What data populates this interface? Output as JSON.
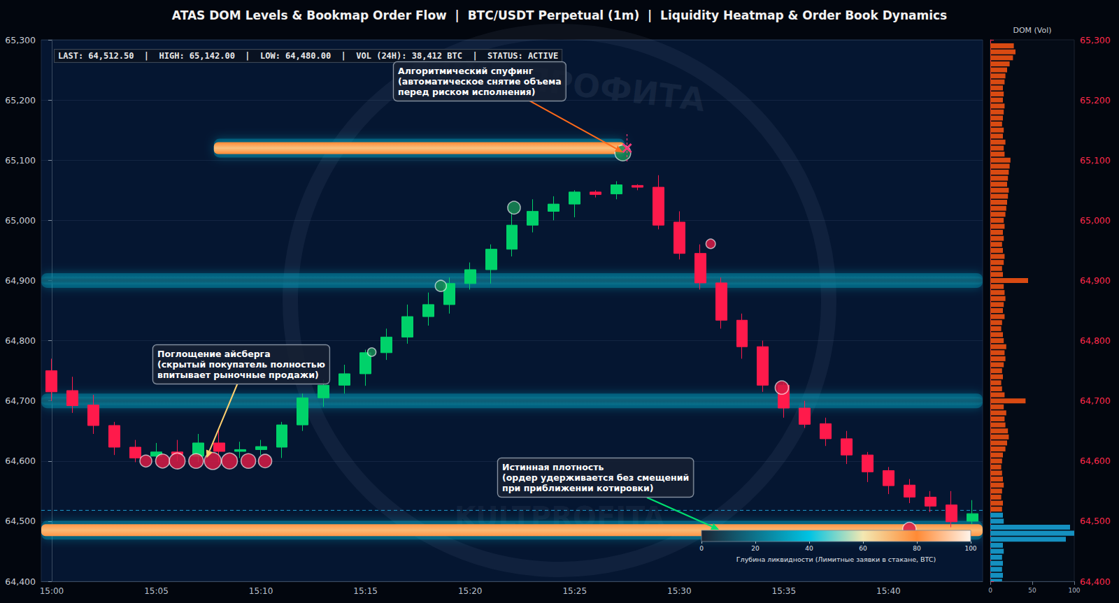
{
  "chart_data": {
    "type": "candlestick",
    "title": "ATAS DOM Levels & Bookmap Order Flow  |  BTC/USDT Perpetual (1m)  |  Liquidity Heatmap & Order Book Dynamics",
    "info": "LAST: 64,512.50  |  HIGH: 65,142.00  |  LOW: 64,480.00  |  VOL (24H): 38,412 BTC  |  STATUS: ACTIVE",
    "watermark": [
      "КЛУБ ПРОФИТА",
      "KULTPROFITA"
    ],
    "categories": [
      "15:00",
      null,
      null,
      null,
      null,
      "15:05",
      null,
      null,
      null,
      null,
      "15:10",
      null,
      null,
      null,
      null,
      "15:15",
      null,
      null,
      null,
      null,
      "15:20",
      null,
      null,
      null,
      null,
      "15:25",
      null,
      null,
      null,
      null,
      "15:30",
      null,
      null,
      null,
      null,
      "15:35",
      null,
      null,
      null,
      null,
      "15:40",
      null,
      null,
      null,
      null
    ],
    "xlim": [
      -0.5,
      44.5
    ],
    "ylim": [
      64400,
      65300
    ],
    "yticks": [
      64400,
      64500,
      64600,
      64700,
      64800,
      64900,
      65000,
      65100,
      65200,
      65300
    ],
    "grid": true,
    "open": [
      64750,
      64717,
      64693,
      64659,
      64623,
      64608,
      64615,
      64608,
      64630,
      64616,
      64619,
      64623,
      64660,
      64705,
      64726,
      64745,
      64780,
      64806,
      64840,
      64860,
      64895,
      64918,
      64952,
      64992,
      65015,
      65027,
      65047,
      65044,
      65058,
      65055,
      64997,
      64945,
      64896,
      64834,
      64790,
      64726,
      64688,
      64662,
      64637,
      64610,
      64584,
      64560,
      64540,
      64527,
      64500
    ],
    "close": [
      64715,
      64692,
      64659,
      64623,
      64605,
      64615,
      64611,
      64630,
      64616,
      64619,
      64624,
      64660,
      64705,
      64726,
      64745,
      64780,
      64806,
      64840,
      64860,
      64895,
      64918,
      64952,
      64992,
      65015,
      65027,
      65047,
      65043,
      65059,
      65055,
      64992,
      64945,
      64896,
      64834,
      64790,
      64726,
      64688,
      64661,
      64637,
      64610,
      64582,
      64559,
      64540,
      64525,
      64499,
      64512.5
    ],
    "high": [
      64770,
      64740,
      64710,
      64665,
      64635,
      64630,
      64635,
      64645,
      64652,
      64632,
      64635,
      64665,
      64712,
      64735,
      64760,
      64785,
      64820,
      64860,
      64880,
      64905,
      64930,
      64960,
      65015,
      65035,
      65040,
      65050,
      65050,
      65065,
      65060,
      65075,
      65015,
      64960,
      64905,
      64845,
      64800,
      64730,
      64700,
      64672,
      64650,
      64615,
      64590,
      64570,
      64550,
      64550,
      64535
    ],
    "low": [
      64700,
      64680,
      64645,
      64610,
      64598,
      64598,
      64600,
      64598,
      64598,
      64605,
      64610,
      64605,
      64650,
      64690,
      64712,
      64725,
      64768,
      64795,
      64825,
      64845,
      64885,
      64895,
      64940,
      64980,
      65000,
      65005,
      65038,
      65035,
      65050,
      64985,
      64935,
      64885,
      64820,
      64770,
      64715,
      64672,
      64655,
      64625,
      64595,
      64565,
      64545,
      64530,
      64515,
      64490,
      64495
    ],
    "last_price_line": 64518,
    "liquidity_levels": [
      {
        "price": 64900,
        "start": -0.5,
        "end": 44.5,
        "depth": 30
      },
      {
        "price": 64700,
        "start": -0.5,
        "end": 44.5,
        "depth": 30
      },
      {
        "price": 65120,
        "start": 7.75,
        "end": 27.4,
        "depth": 88
      },
      {
        "price": 64485,
        "start": -0.5,
        "end": 44.5,
        "depth": 90
      }
    ],
    "trade_bubbles": [
      {
        "color": "#d81b45",
        "points": [
          {
            "t": 4.5,
            "price": 64600,
            "size": 40
          },
          {
            "t": 5.3,
            "price": 64600,
            "size": 55
          },
          {
            "t": 6.0,
            "price": 64600,
            "size": 70
          },
          {
            "t": 6.9,
            "price": 64600,
            "size": 60
          },
          {
            "t": 7.7,
            "price": 64600,
            "size": 80
          },
          {
            "t": 8.5,
            "price": 64600,
            "size": 70
          },
          {
            "t": 9.4,
            "price": 64600,
            "size": 60
          },
          {
            "t": 10.2,
            "price": 64600,
            "size": 50
          },
          {
            "t": 31.5,
            "price": 64961,
            "size": 25
          },
          {
            "t": 34.9,
            "price": 64722,
            "size": 50
          },
          {
            "t": 41.0,
            "price": 64487,
            "size": 50
          }
        ]
      },
      {
        "color": "#178a55",
        "points": [
          {
            "t": 15.3,
            "price": 64781,
            "size": 20
          },
          {
            "t": 18.6,
            "price": 64891,
            "size": 35
          },
          {
            "t": 22.1,
            "price": 65021,
            "size": 45
          },
          {
            "t": 27.3,
            "price": 65112,
            "size": 70
          }
        ]
      }
    ],
    "spoof_cancel": {
      "t": 27.5,
      "price": 65120
    },
    "annotations": [
      {
        "text": "Алгоритмический спуфинг\n(автоматическое снятие объема\nперед риском исполнения)",
        "t": 27.3,
        "price": 65113,
        "color": "#ff6a1a"
      },
      {
        "text": "Поглощение айсберга\n(скрытый покупатель полностью\nвпитывает рыночные продажи)",
        "t": 7.4,
        "price": 64605,
        "color": "#ffd070"
      },
      {
        "text": "Истинная плотность\n(ордер удерживается без смещений\nпри приближении котировки)",
        "t": 31.9,
        "price": 64486,
        "color": "#00e070"
      }
    ],
    "colorbar": {
      "label": "Глубина ликвидности (Лимитные заявки в стакане, BTC)",
      "range": [
        0,
        100
      ],
      "ticks": [
        0,
        20,
        40,
        60,
        80,
        100
      ]
    },
    "dom": {
      "title": "DOM (Vol)",
      "xlim": [
        0,
        100
      ],
      "xticks": [
        0,
        50,
        100
      ],
      "series": [
        {
          "color": "#1590c0",
          "prices": [
            64400,
            64410,
            64420,
            64430,
            64440,
            64450,
            64460,
            64470,
            64480,
            64490,
            64500,
            64510
          ],
          "values": [
            14,
            15,
            14,
            15,
            14,
            16,
            15,
            90,
            100,
            95,
            16,
            15
          ]
        },
        {
          "color": "#d94a12",
          "prices": [
            64520,
            64530,
            64540,
            64550,
            64560,
            64570,
            64580,
            64590,
            64600,
            64610,
            64620,
            64630,
            64640,
            64650,
            64660,
            64670,
            64680,
            64690,
            64700,
            64710,
            64720,
            64730,
            64740,
            64750,
            64760,
            64770,
            64780,
            64790,
            64800,
            64810,
            64820,
            64830,
            64840,
            64850,
            64860,
            64870,
            64880,
            64890,
            64900,
            64910,
            64920,
            64930,
            64940,
            64950,
            64960,
            64970,
            64980,
            64990,
            65000,
            65010,
            65020,
            65030,
            65040,
            65050,
            65060,
            65070,
            65080,
            65090,
            65100,
            65110,
            65120,
            65130,
            65140,
            65150,
            65160,
            65170,
            65180,
            65190,
            65200,
            65210,
            65220,
            65230,
            65240,
            65250,
            65260,
            65270,
            65280,
            65290
          ],
          "values": [
            14,
            15,
            13,
            14,
            16,
            15,
            14,
            13,
            14,
            15,
            18,
            20,
            22,
            21,
            18,
            17,
            19,
            16,
            42,
            17,
            14,
            13,
            15,
            14,
            16,
            18,
            17,
            19,
            16,
            15,
            13,
            14,
            17,
            15,
            16,
            18,
            17,
            16,
            45,
            15,
            14,
            16,
            17,
            15,
            14,
            16,
            15,
            17,
            16,
            18,
            19,
            20,
            21,
            22,
            20,
            21,
            22,
            23,
            24,
            17,
            16,
            18,
            15,
            16,
            14,
            15,
            16,
            17,
            15,
            16,
            15,
            17,
            18,
            20,
            23,
            27,
            30,
            28
          ]
        }
      ]
    }
  }
}
